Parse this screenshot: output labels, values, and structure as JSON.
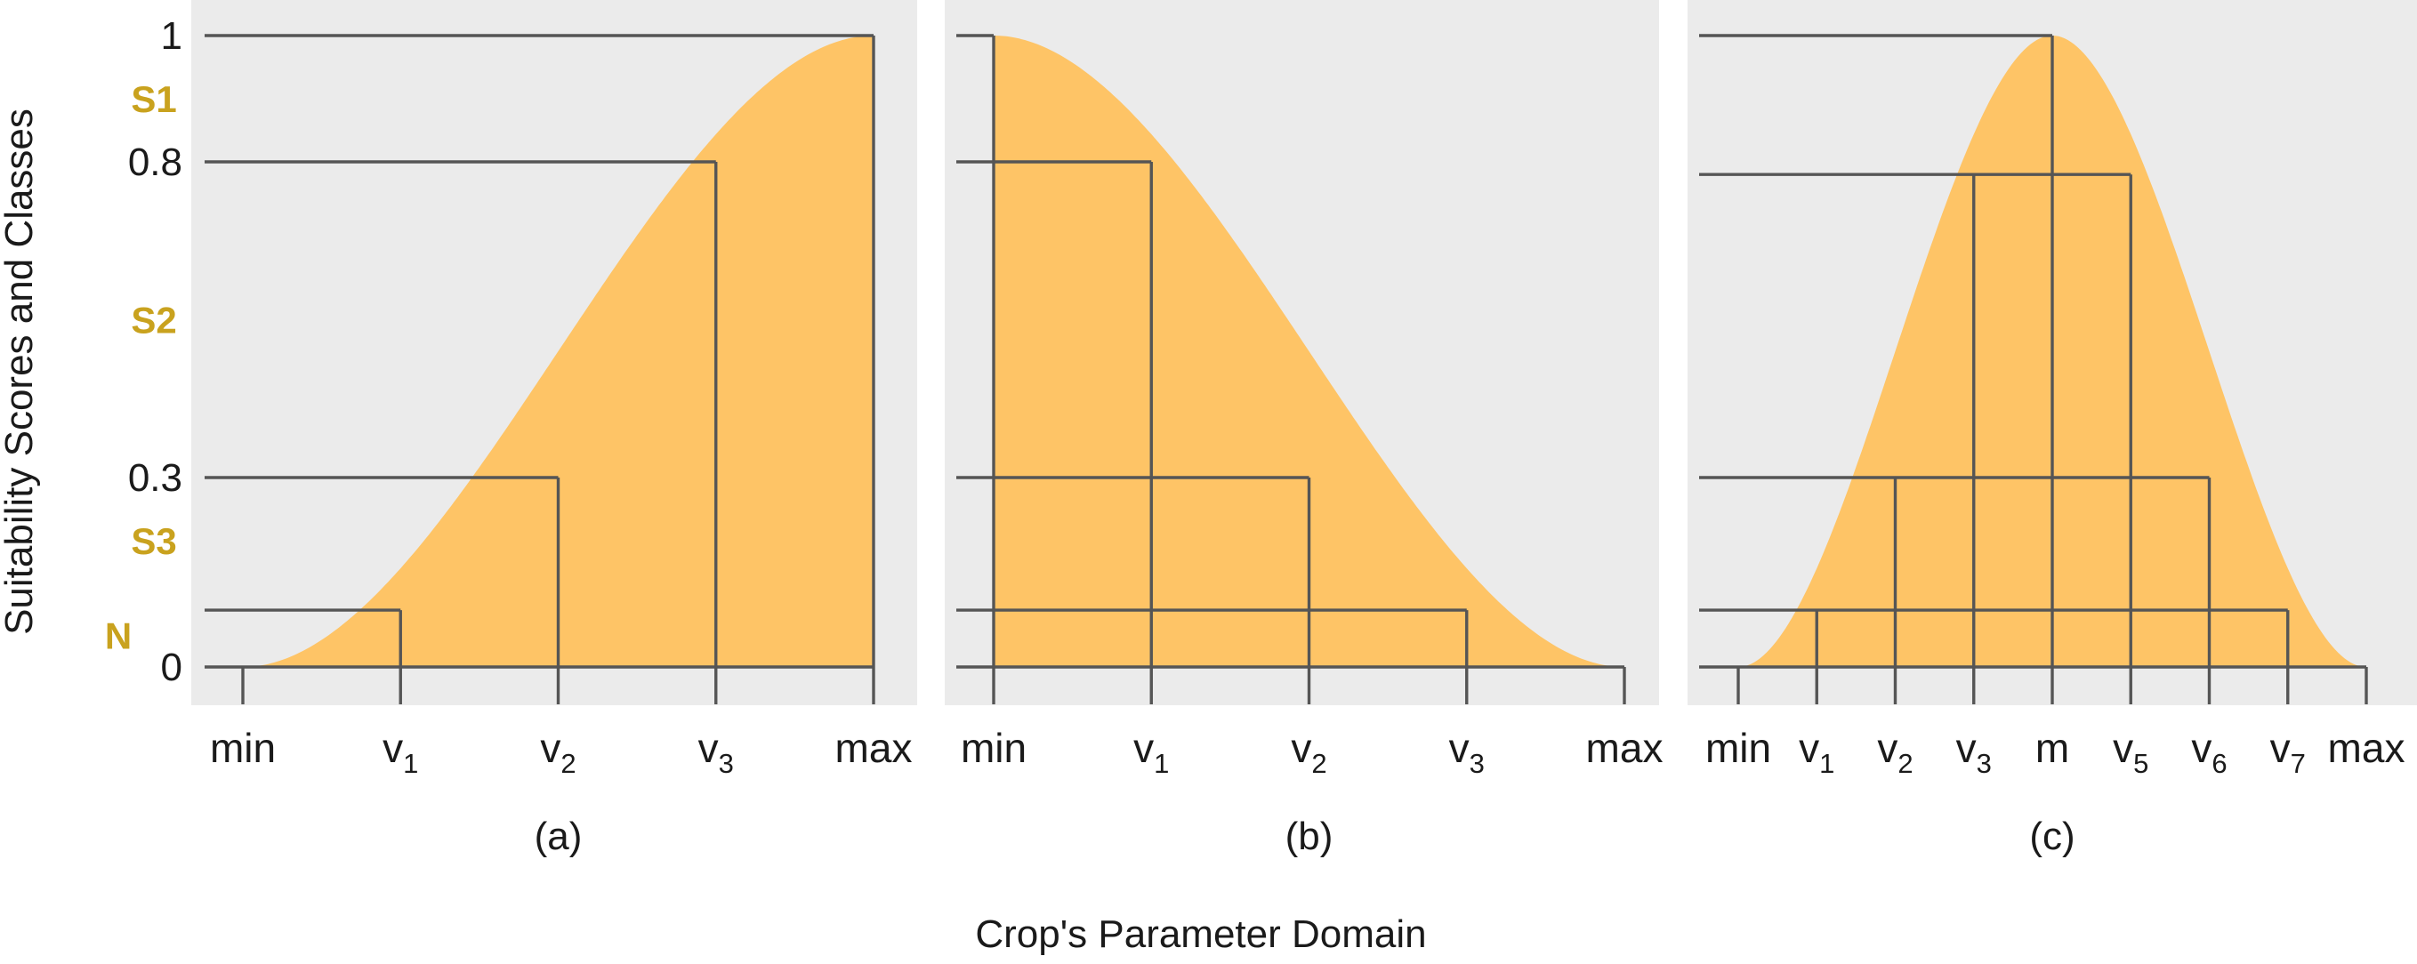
{
  "ylabel": "Suitability Scores and Classes",
  "xlabel": "Crop's Parameter Domain",
  "y_ticks": [
    {
      "value": 1,
      "label": "1"
    },
    {
      "value": 0.8,
      "label": "0.8"
    },
    {
      "value": 0.3,
      "label": "0.3"
    },
    {
      "value": 0,
      "label": "0"
    }
  ],
  "classes": [
    {
      "label": "S1",
      "center": 0.9
    },
    {
      "label": "S2",
      "center": 0.55
    },
    {
      "label": "S3",
      "center": 0.2
    },
    {
      "label": "N",
      "center": 0.05
    }
  ],
  "colors": {
    "fill": "#fec466",
    "background": "#ebebeb",
    "lines": "#555555",
    "class_labels": "#c9a21e"
  },
  "panels": [
    {
      "caption": "(a)",
      "shape": "increasing",
      "ticks": [
        {
          "main": "min",
          "sub": ""
        },
        {
          "main": "v",
          "sub": "1"
        },
        {
          "main": "v",
          "sub": "2"
        },
        {
          "main": "v",
          "sub": "3"
        },
        {
          "main": "max",
          "sub": ""
        }
      ],
      "tick_scores": [
        0,
        0.09,
        0.3,
        0.8,
        1
      ]
    },
    {
      "caption": "(b)",
      "shape": "decreasing",
      "ticks": [
        {
          "main": "min",
          "sub": ""
        },
        {
          "main": "v",
          "sub": "1"
        },
        {
          "main": "v",
          "sub": "2"
        },
        {
          "main": "v",
          "sub": "3"
        },
        {
          "main": "max",
          "sub": ""
        }
      ],
      "tick_scores": [
        1,
        0.8,
        0.3,
        0.09,
        0
      ]
    },
    {
      "caption": "(c)",
      "shape": "bell",
      "ticks": [
        {
          "main": "min",
          "sub": ""
        },
        {
          "main": "v",
          "sub": "1"
        },
        {
          "main": "v",
          "sub": "2"
        },
        {
          "main": "v",
          "sub": "3"
        },
        {
          "main": "m",
          "sub": ""
        },
        {
          "main": "v",
          "sub": "5"
        },
        {
          "main": "v",
          "sub": "6"
        },
        {
          "main": "v",
          "sub": "7"
        },
        {
          "main": "max",
          "sub": ""
        }
      ],
      "tick_scores": [
        0,
        0.09,
        0.3,
        0.78,
        1,
        0.78,
        0.3,
        0.09,
        0
      ]
    }
  ]
}
